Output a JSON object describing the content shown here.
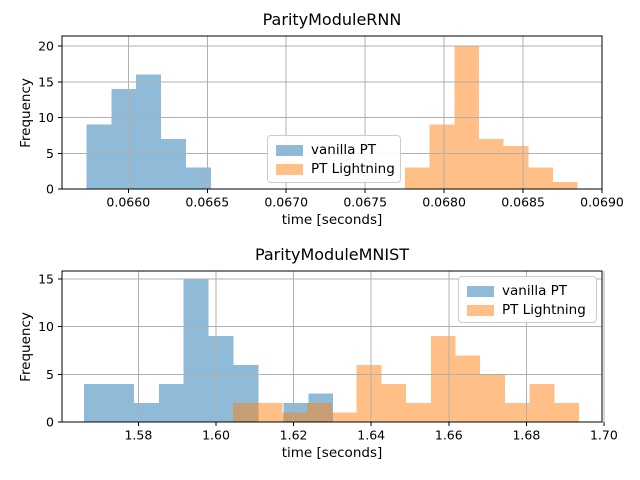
{
  "figure": {
    "background": "#ffffff",
    "grid_color": "#b0b0b0",
    "spine_color": "#000000"
  },
  "chart_data": [
    {
      "type": "bar",
      "subtype": "histogram",
      "title": "ParityModuleRNN",
      "xlabel": "time [seconds]",
      "ylabel": "Frequency",
      "xlim": [
        0.06558,
        0.069
      ],
      "ylim": [
        0,
        21.4
      ],
      "xticks": [
        0.066,
        0.0665,
        0.067,
        0.0675,
        0.068,
        0.0685,
        0.069
      ],
      "xtick_labels": [
        "0.0660",
        "0.0665",
        "0.0670",
        "0.0675",
        "0.0680",
        "0.0685",
        "0.0690"
      ],
      "yticks": [
        0,
        5,
        10,
        15,
        20
      ],
      "ytick_labels": [
        "0",
        "5",
        "10",
        "15",
        "20"
      ],
      "grid": true,
      "legend": {
        "position": "center",
        "entries": [
          "vanilla PT",
          "PT Lightning"
        ]
      },
      "series": [
        {
          "name": "vanilla PT",
          "color": "#1f77b4",
          "alpha": 0.5,
          "bin_start": 0.065734,
          "bin_width": 0.000158,
          "counts": [
            9,
            14,
            16,
            7,
            3
          ]
        },
        {
          "name": "PT Lightning",
          "color": "#ff7f0e",
          "alpha": 0.5,
          "bin_start": 0.067753,
          "bin_width": 0.000156,
          "counts": [
            3,
            9,
            20,
            7,
            6,
            3,
            1
          ]
        }
      ]
    },
    {
      "type": "bar",
      "subtype": "histogram",
      "title": "ParityModuleMNIST",
      "xlabel": "time [seconds]",
      "ylabel": "Frequency",
      "xlim": [
        1.5603,
        1.6995
      ],
      "ylim": [
        0,
        15.84
      ],
      "xticks": [
        1.58,
        1.6,
        1.62,
        1.64,
        1.66,
        1.68,
        1.7
      ],
      "xtick_labels": [
        "1.58",
        "1.60",
        "1.62",
        "1.64",
        "1.66",
        "1.68",
        "1.70"
      ],
      "yticks": [
        0,
        5,
        10,
        15
      ],
      "ytick_labels": [
        "0",
        "5",
        "10",
        "15"
      ],
      "grid": true,
      "legend": {
        "position": "upper right",
        "entries": [
          "vanilla PT",
          "PT Lightning"
        ]
      },
      "series": [
        {
          "name": "vanilla PT",
          "color": "#1f77b4",
          "alpha": 0.5,
          "bin_start": 1.566,
          "bin_width": 0.00642,
          "counts": [
            4,
            4,
            2,
            4,
            15,
            9,
            6,
            0,
            2,
            3
          ]
        },
        {
          "name": "PT Lightning",
          "color": "#ff7f0e",
          "alpha": 0.5,
          "bin_start": 1.6044,
          "bin_width": 0.00637,
          "counts": [
            2,
            2,
            1,
            2,
            1,
            6,
            4,
            2,
            9,
            7,
            5,
            2,
            4,
            2
          ]
        }
      ]
    }
  ]
}
